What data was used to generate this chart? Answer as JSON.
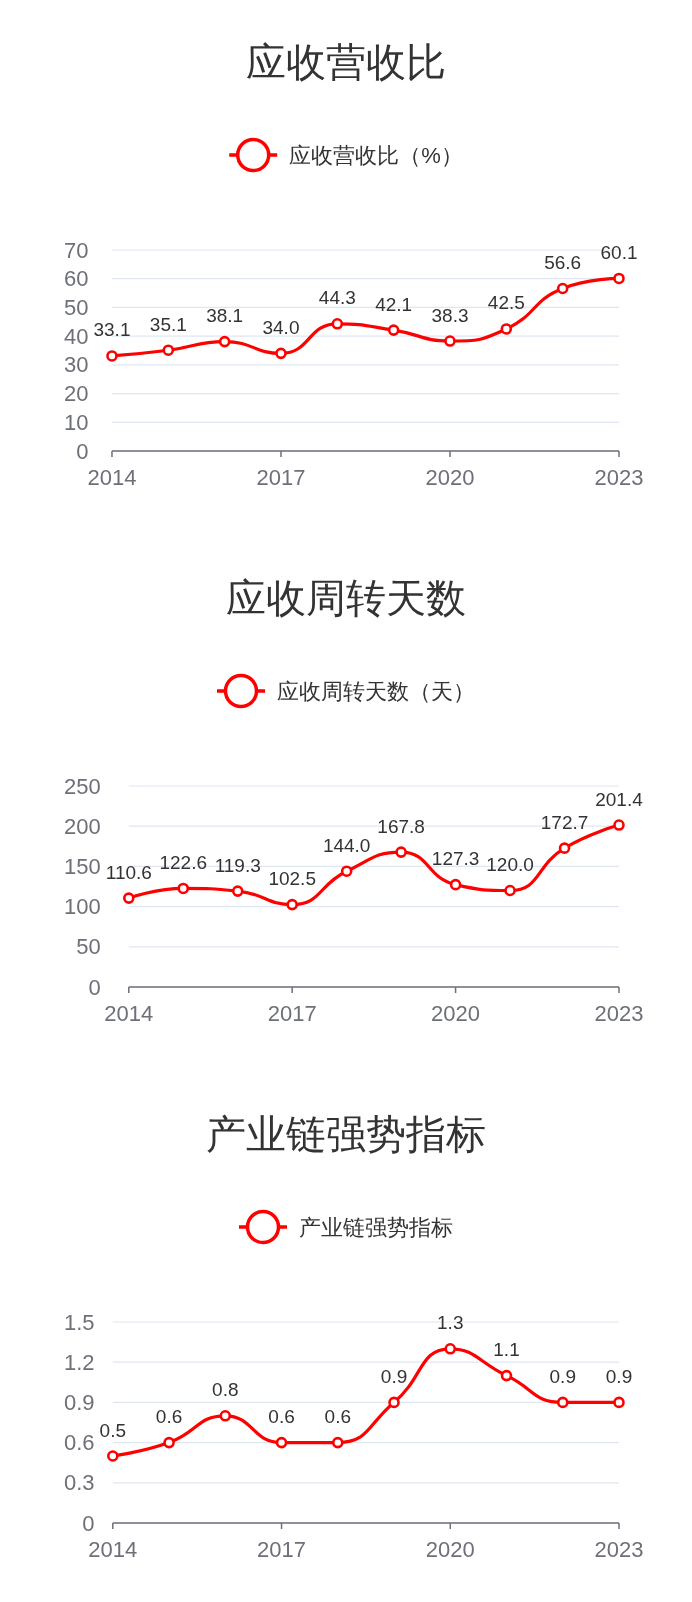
{
  "chart_data": [
    {
      "type": "line",
      "title": "应收营收比",
      "x": [
        2014,
        2015,
        2016,
        2017,
        2018,
        2019,
        2020,
        2021,
        2022,
        2023
      ],
      "series": [
        {
          "name": "应收营收比（%）",
          "color": "#ff0000",
          "values": [
            33.1,
            35.1,
            38.1,
            34.0,
            44.3,
            42.1,
            38.3,
            42.5,
            56.6,
            60.1
          ],
          "value_labels": [
            "33.1",
            "35.1",
            "38.1",
            "34.0",
            "44.3",
            "42.1",
            "38.3",
            "42.5",
            "56.6",
            "60.1"
          ]
        }
      ],
      "xlim": [
        2014,
        2023
      ],
      "xticks": [
        2014,
        2017,
        2020,
        2023
      ],
      "ylim": [
        0,
        70
      ],
      "yticks": [
        0,
        10,
        20,
        30,
        40,
        50,
        60,
        70
      ],
      "grid": "y",
      "legend": "top",
      "marker": "circle",
      "line_style": "solid"
    },
    {
      "type": "line",
      "title": "应收周转天数",
      "x": [
        2014,
        2015,
        2016,
        2017,
        2018,
        2019,
        2020,
        2021,
        2022,
        2023
      ],
      "series": [
        {
          "name": "应收周转天数（天）",
          "color": "#ff0000",
          "values": [
            110.6,
            122.6,
            119.3,
            102.5,
            144.0,
            167.8,
            127.3,
            120.0,
            172.7,
            201.4
          ],
          "value_labels": [
            "110.6",
            "122.6",
            "119.3",
            "102.5",
            "144.0",
            "167.8",
            "127.3",
            "120.0",
            "172.7",
            "201.4"
          ]
        }
      ],
      "xlim": [
        2014,
        2023
      ],
      "xticks": [
        2014,
        2017,
        2020,
        2023
      ],
      "ylim": [
        0,
        250
      ],
      "yticks": [
        0,
        50,
        100,
        150,
        200,
        250
      ],
      "grid": "y",
      "legend": "top",
      "marker": "circle",
      "line_style": "solid"
    },
    {
      "type": "line",
      "title": "产业链强势指标",
      "x": [
        2014,
        2015,
        2016,
        2017,
        2018,
        2019,
        2020,
        2021,
        2022,
        2023
      ],
      "series": [
        {
          "name": "产业链强势指标",
          "color": "#ff0000",
          "values": [
            0.5,
            0.6,
            0.8,
            0.6,
            0.6,
            0.9,
            1.3,
            1.1,
            0.9,
            0.9
          ]
        }
      ],
      "xlim": [
        2014,
        2023
      ],
      "xticks": [
        2014,
        2017,
        2020,
        2023
      ],
      "ylim": [
        0,
        1.5
      ],
      "yticks": [
        0,
        0.3,
        0.6,
        0.9,
        1.2,
        1.5
      ],
      "grid": "y",
      "legend": "top",
      "marker": "circle",
      "line_style": "solid",
      "data_labels": true
    }
  ]
}
